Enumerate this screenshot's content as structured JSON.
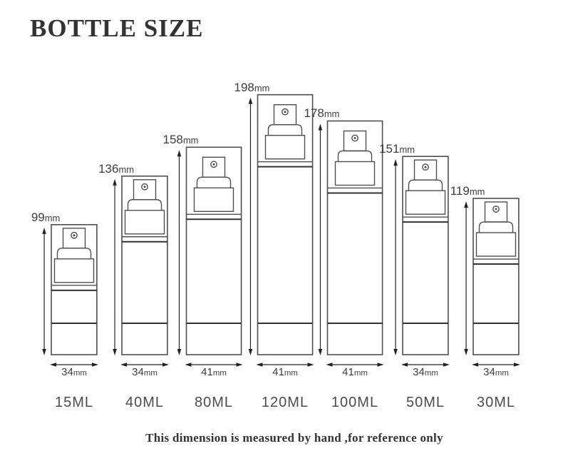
{
  "title": "BOTTLE SIZE",
  "footer_note": "This dimension is measured by hand ,for reference only",
  "unit_label": "mm",
  "colors": {
    "background": "#ffffff",
    "line": "#4f4f4f",
    "accent_line": "#333333",
    "text": "#3c3c3c",
    "title_text": "#333333"
  },
  "bottles": [
    {
      "volume_label": "15ML",
      "height_mm": 99,
      "width_mm": 34
    },
    {
      "volume_label": "40ML",
      "height_mm": 136,
      "width_mm": 34
    },
    {
      "volume_label": "80ML",
      "height_mm": 158,
      "width_mm": 41
    },
    {
      "volume_label": "120ML",
      "height_mm": 198,
      "width_mm": 41
    },
    {
      "volume_label": "100ML",
      "height_mm": 178,
      "width_mm": 41
    },
    {
      "volume_label": "50ML",
      "height_mm": 151,
      "width_mm": 34
    },
    {
      "volume_label": "30ML",
      "height_mm": 119,
      "width_mm": 34
    }
  ],
  "chart_data": {
    "type": "table",
    "title": "BOTTLE SIZE",
    "categories": [
      "15ML",
      "40ML",
      "80ML",
      "120ML",
      "100ML",
      "50ML",
      "30ML"
    ],
    "series": [
      {
        "name": "height_mm",
        "values": [
          99,
          136,
          158,
          198,
          178,
          151,
          119
        ]
      },
      {
        "name": "diameter_mm",
        "values": [
          34,
          34,
          41,
          41,
          41,
          34,
          34
        ]
      }
    ],
    "note": "This dimension is measured by hand ,for reference only"
  }
}
